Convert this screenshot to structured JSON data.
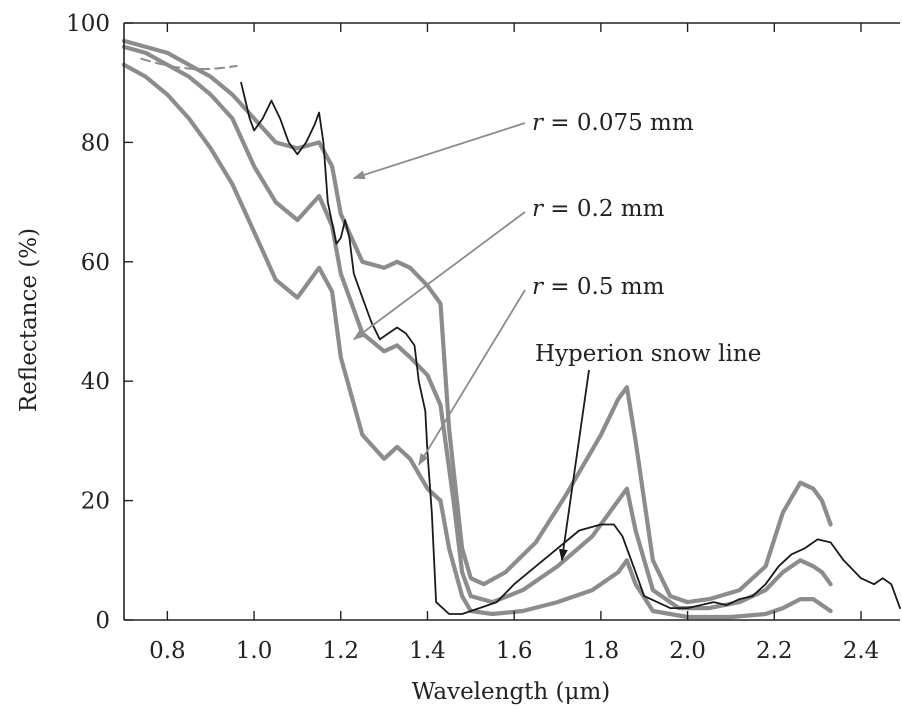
{
  "chart_data": {
    "type": "line",
    "xlabel": "Wavelength (μm)",
    "ylabel": "Reflectance (%)",
    "xlim": [
      0.7,
      2.49
    ],
    "ylim": [
      0,
      100
    ],
    "x_ticks": [
      0.8,
      1.0,
      1.2,
      1.4,
      1.6,
      1.8,
      2.0,
      2.2,
      2.4
    ],
    "x_tick_labels": [
      "0.8",
      "1.0",
      "1.2",
      "1.4",
      "1.6",
      "1.8",
      "2.0",
      "2.2",
      "2.4"
    ],
    "y_ticks": [
      0,
      20,
      40,
      60,
      80,
      100
    ],
    "y_tick_labels": [
      "0",
      "20",
      "40",
      "60",
      "80",
      "100"
    ],
    "grid": false,
    "legend": "none",
    "series": [
      {
        "color": "#8c8c8c",
        "style": "thick",
        "x": [
          0.7,
          0.75,
          0.8,
          0.85,
          0.9,
          0.95,
          1.0,
          1.05,
          1.1,
          1.15,
          1.18,
          1.2,
          1.25,
          1.3,
          1.33,
          1.36,
          1.4,
          1.43,
          1.45,
          1.48,
          1.5,
          1.53,
          1.58,
          1.65,
          1.72,
          1.8,
          1.84,
          1.86,
          1.88,
          1.92,
          1.96,
          2.0,
          2.05,
          2.12,
          2.18,
          2.22,
          2.26,
          2.29,
          2.31,
          2.33
        ],
        "y": [
          97,
          96,
          95,
          93,
          91,
          88,
          84,
          80,
          79,
          80,
          76,
          68,
          60,
          59,
          60,
          59,
          56,
          53,
          32,
          12,
          7,
          6,
          8,
          13,
          21,
          31,
          37,
          39,
          30,
          10,
          4,
          3,
          3.5,
          5,
          9,
          18,
          23,
          22,
          20,
          16
        ]
      },
      {
        "color": "#8c8c8c",
        "style": "thick",
        "x": [
          0.7,
          0.75,
          0.8,
          0.85,
          0.9,
          0.95,
          1.0,
          1.05,
          1.1,
          1.15,
          1.18,
          1.2,
          1.25,
          1.3,
          1.33,
          1.36,
          1.4,
          1.43,
          1.46,
          1.48,
          1.5,
          1.55,
          1.62,
          1.7,
          1.78,
          1.84,
          1.86,
          1.88,
          1.92,
          1.98,
          2.05,
          2.12,
          2.18,
          2.22,
          2.26,
          2.29,
          2.31,
          2.33
        ],
        "y": [
          96,
          95,
          93,
          91,
          88,
          84,
          76,
          70,
          67,
          71,
          66,
          58,
          48,
          45,
          46,
          44,
          41,
          36,
          20,
          8,
          4,
          3,
          5,
          9,
          14,
          20,
          22,
          15,
          5,
          2,
          2,
          3,
          5,
          8,
          10,
          9,
          8,
          6
        ]
      },
      {
        "color": "#8c8c8c",
        "style": "thick",
        "x": [
          0.7,
          0.75,
          0.8,
          0.85,
          0.9,
          0.95,
          1.0,
          1.05,
          1.1,
          1.15,
          1.18,
          1.2,
          1.25,
          1.3,
          1.33,
          1.36,
          1.4,
          1.43,
          1.45,
          1.48,
          1.5,
          1.55,
          1.62,
          1.7,
          1.78,
          1.84,
          1.86,
          1.88,
          1.92,
          2.0,
          2.1,
          2.18,
          2.22,
          2.26,
          2.29,
          2.31,
          2.33
        ],
        "y": [
          93,
          91,
          88,
          84,
          79,
          73,
          65,
          57,
          54,
          59,
          55,
          44,
          31,
          27,
          29,
          27,
          22,
          20,
          12,
          4,
          1.5,
          1,
          1.5,
          3,
          5,
          8,
          10,
          6,
          1.5,
          0.5,
          0.5,
          1,
          2,
          3.5,
          3.5,
          2.5,
          1.5
        ]
      },
      {
        "color": "#8c8c8c",
        "style": "dashed",
        "x": [
          0.74,
          0.78,
          0.82,
          0.86,
          0.9,
          0.93,
          0.96
        ],
        "y": [
          94,
          93.2,
          92.6,
          92.3,
          92.3,
          92.5,
          92.8
        ]
      },
      {
        "name": "Hyperion snow line",
        "color": "#1a1a1a",
        "style": "thin",
        "x": [
          0.97,
          0.99,
          1.0,
          1.02,
          1.04,
          1.06,
          1.08,
          1.1,
          1.12,
          1.14,
          1.15,
          1.16,
          1.17,
          1.19,
          1.2,
          1.21,
          1.22,
          1.23,
          1.25,
          1.27,
          1.29,
          1.31,
          1.33,
          1.35,
          1.37,
          1.38,
          1.395,
          1.4,
          1.41,
          1.42,
          1.45,
          1.48,
          1.52,
          1.56,
          1.6,
          1.65,
          1.7,
          1.75,
          1.8,
          1.83,
          1.85,
          1.88,
          1.9,
          1.93,
          1.96,
          2.0,
          2.03,
          2.06,
          2.09,
          2.12,
          2.15,
          2.18,
          2.21,
          2.24,
          2.27,
          2.3,
          2.33,
          2.36,
          2.4,
          2.43,
          2.45,
          2.47,
          2.49
        ],
        "y": [
          90,
          84,
          82,
          84,
          87,
          84,
          80,
          78,
          80,
          83,
          85,
          80,
          70,
          63,
          64,
          67,
          64,
          58,
          54,
          50,
          47,
          48,
          49,
          48,
          46,
          40,
          35,
          28,
          18,
          3,
          1,
          1,
          2,
          3,
          6,
          9,
          12,
          15,
          16,
          16,
          14,
          8,
          4,
          3,
          2,
          2,
          2.5,
          3,
          2.5,
          3.5,
          4,
          6,
          9,
          11,
          12,
          13.5,
          13,
          10,
          7,
          6,
          7,
          6,
          2
        ]
      }
    ],
    "annotations": [
      {
        "label": "r",
        "rest": " = 0.075 mm",
        "target_x": 1.23,
        "target_y": 74
      },
      {
        "label": "r",
        "rest": " = 0.2 mm",
        "target_x": 1.23,
        "target_y": 47
      },
      {
        "label": "r",
        "rest": " = 0.5 mm",
        "target_x": 1.38,
        "target_y": 26
      },
      {
        "label": "Hyperion snow line",
        "rest": "",
        "target_x": 1.71,
        "target_y": 10
      }
    ]
  }
}
